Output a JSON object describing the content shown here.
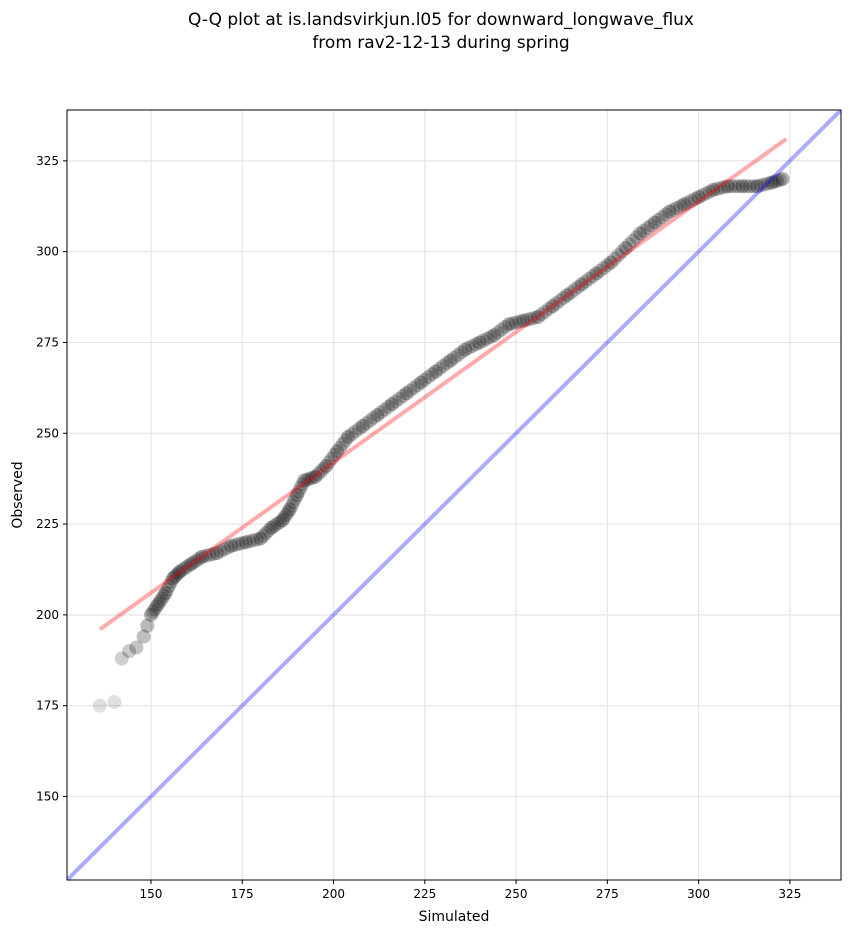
{
  "chart_data": {
    "type": "scatter",
    "title_lines": [
      "Q-Q plot at is.landsvirkjun.l05 for downward_longwave_flux",
      "from rav2-12-13 during spring"
    ],
    "xlabel": "Simulated",
    "ylabel": "Observed",
    "xlim": [
      127,
      339
    ],
    "ylim": [
      127,
      339
    ],
    "xticks": [
      150,
      175,
      200,
      225,
      250,
      275,
      300,
      325
    ],
    "yticks": [
      150,
      175,
      200,
      225,
      250,
      275,
      300,
      325
    ],
    "grid": true,
    "series": [
      {
        "name": "quantiles",
        "color": "#000000",
        "points": [
          [
            136,
            175
          ],
          [
            140,
            176
          ],
          [
            142,
            188
          ],
          [
            144,
            190
          ],
          [
            146,
            191
          ],
          [
            148,
            194
          ],
          [
            149,
            197
          ],
          [
            150,
            200
          ],
          [
            152,
            203
          ],
          [
            154,
            206
          ],
          [
            156,
            210
          ],
          [
            158,
            212
          ],
          [
            161,
            214
          ],
          [
            164,
            216
          ],
          [
            168,
            217
          ],
          [
            172,
            219
          ],
          [
            176,
            220
          ],
          [
            180,
            221
          ],
          [
            183,
            224
          ],
          [
            186,
            226
          ],
          [
            188,
            229
          ],
          [
            190,
            233
          ],
          [
            192,
            237
          ],
          [
            195,
            238
          ],
          [
            198,
            241
          ],
          [
            201,
            245
          ],
          [
            204,
            249
          ],
          [
            208,
            252
          ],
          [
            212,
            255
          ],
          [
            216,
            258
          ],
          [
            220,
            261
          ],
          [
            224,
            264
          ],
          [
            228,
            267
          ],
          [
            232,
            270
          ],
          [
            236,
            273
          ],
          [
            240,
            275
          ],
          [
            244,
            277
          ],
          [
            248,
            280
          ],
          [
            252,
            281
          ],
          [
            256,
            282
          ],
          [
            260,
            285
          ],
          [
            264,
            288
          ],
          [
            268,
            291
          ],
          [
            272,
            294
          ],
          [
            276,
            297
          ],
          [
            280,
            301
          ],
          [
            284,
            305
          ],
          [
            288,
            308
          ],
          [
            292,
            311
          ],
          [
            296,
            313
          ],
          [
            300,
            315
          ],
          [
            304,
            317
          ],
          [
            308,
            318
          ],
          [
            312,
            318
          ],
          [
            316,
            318
          ],
          [
            320,
            319
          ],
          [
            323,
            320
          ]
        ]
      }
    ],
    "fit_line": {
      "color": "#ff0000",
      "from": [
        136,
        196
      ],
      "to": [
        324,
        331
      ]
    },
    "identity_line": {
      "color": "#0000ff",
      "from": [
        127,
        127
      ],
      "to": [
        339,
        339
      ]
    }
  }
}
